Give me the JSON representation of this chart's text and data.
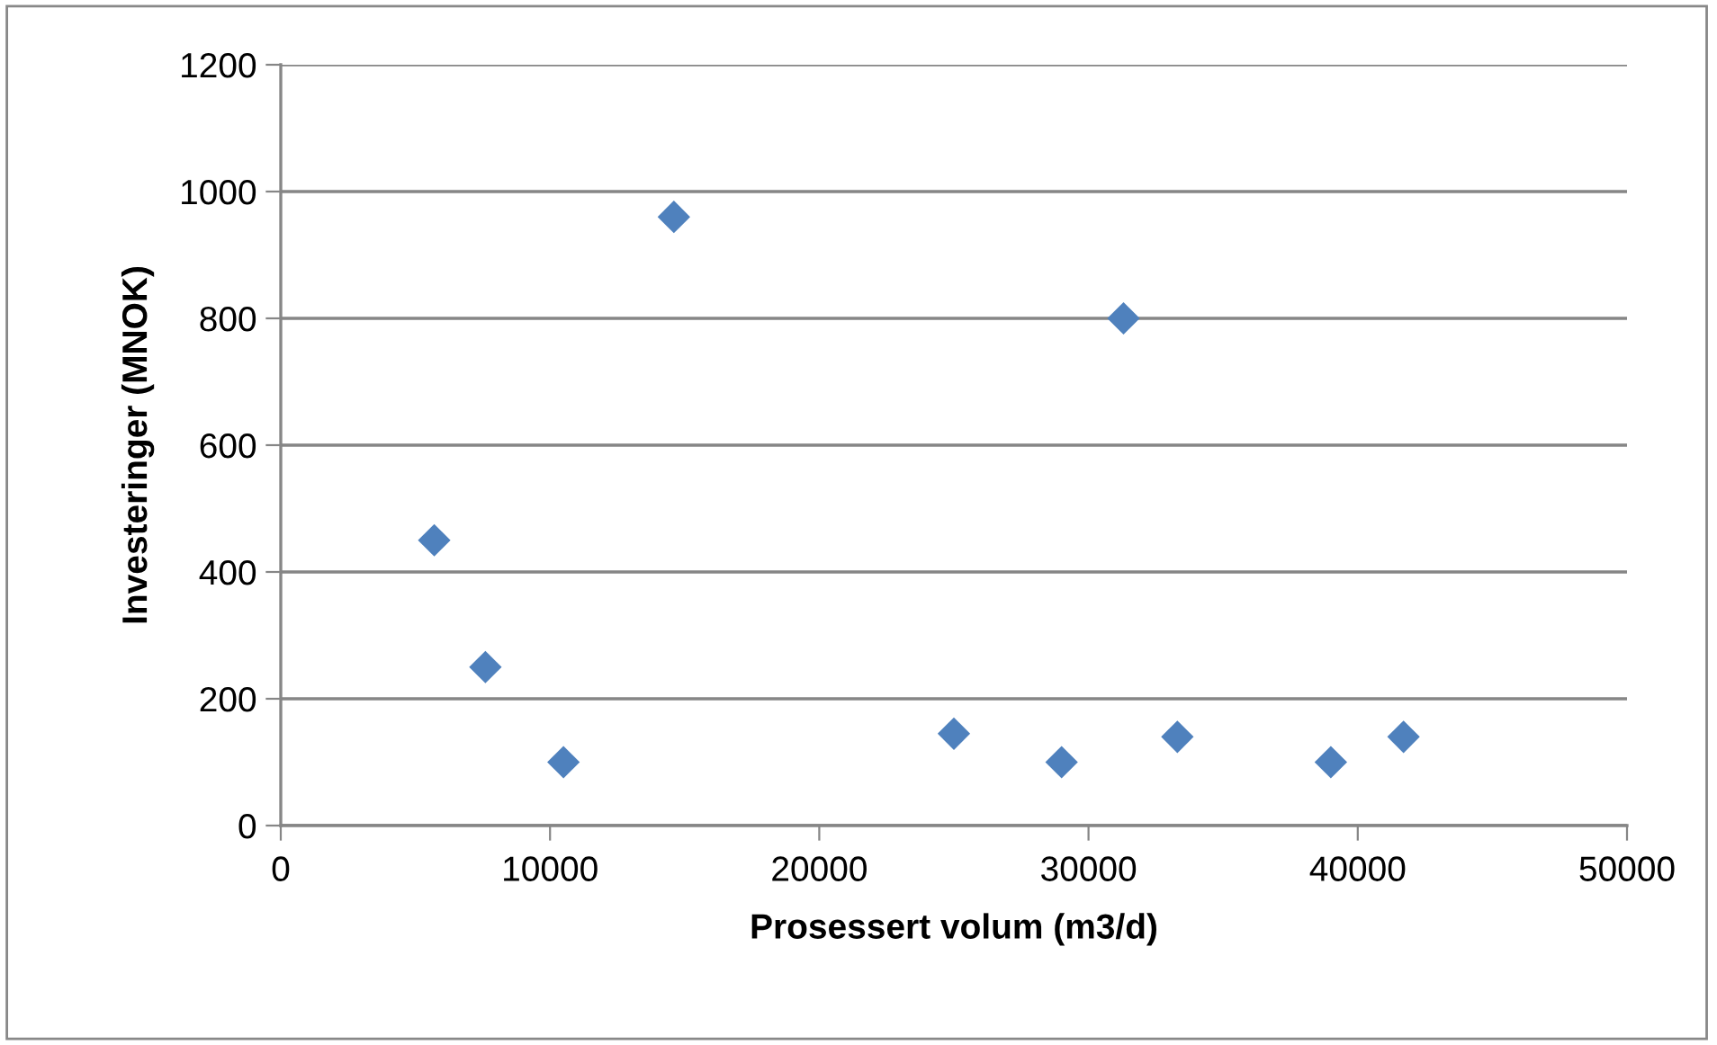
{
  "chart_data": {
    "type": "scatter",
    "xlabel": "Prosessert volum (m3/d)",
    "ylabel": "Investeringer (MNOK)",
    "x": [
      5700,
      7600,
      10500,
      14600,
      25000,
      29000,
      31300,
      33300,
      39000,
      41700
    ],
    "series": [
      {
        "color": "#4f81bd",
        "values": [
          450,
          250,
          100,
          960,
          145,
          100,
          800,
          140,
          100,
          140
        ]
      }
    ],
    "xlim": [
      0,
      50000
    ],
    "xticks": [
      0,
      10000,
      20000,
      30000,
      40000,
      50000
    ],
    "ylim": [
      0,
      1200
    ],
    "yticks": [
      0,
      200,
      400,
      600,
      800,
      1000,
      1200
    ],
    "grid": "y",
    "marker": "diamond",
    "legend": false
  }
}
